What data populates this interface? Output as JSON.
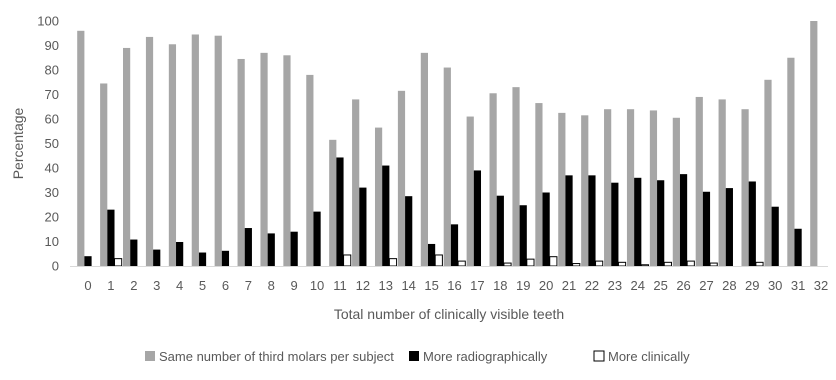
{
  "chart_data": {
    "type": "bar",
    "xlabel": "Total number of clinically visible teeth",
    "ylabel": "Percentage",
    "ylim": [
      0,
      100
    ],
    "yticks": [
      0,
      10,
      20,
      30,
      40,
      50,
      60,
      70,
      80,
      90,
      100
    ],
    "categories": [
      "0",
      "1",
      "2",
      "3",
      "4",
      "5",
      "6",
      "7",
      "8",
      "9",
      "10",
      "11",
      "12",
      "13",
      "14",
      "15",
      "16",
      "17",
      "18",
      "19",
      "20",
      "21",
      "22",
      "23",
      "24",
      "25",
      "26",
      "27",
      "28",
      "29",
      "30",
      "31",
      "32"
    ],
    "series": [
      {
        "name": "Same number of third molars per subject",
        "color": "#a6a6a6",
        "values": [
          96,
          74.5,
          89,
          93.5,
          90.5,
          94.5,
          94,
          84.5,
          87,
          86,
          78,
          51.5,
          68,
          56.5,
          71.5,
          87,
          81,
          61,
          70.5,
          73,
          66.5,
          62.5,
          61.5,
          64,
          64,
          63.5,
          60.5,
          69,
          68,
          64,
          76,
          85,
          100
        ]
      },
      {
        "name": "More radiographically",
        "color": "#000000",
        "values": [
          4,
          23,
          10.8,
          6.7,
          9.8,
          5.5,
          6.2,
          15.5,
          13.3,
          14,
          22.2,
          44.3,
          32,
          41,
          28.5,
          9,
          17,
          39,
          28.7,
          24.8,
          30,
          37,
          37,
          34,
          36,
          35,
          37.5,
          30.3,
          31.8,
          34.5,
          24.2,
          15.2,
          0
        ]
      },
      {
        "name": "More clinically",
        "color": "#ffffff",
        "values": [
          0,
          3,
          0,
          0,
          0,
          0,
          0,
          0,
          0,
          0,
          0,
          4.5,
          0,
          3,
          0,
          4.5,
          2,
          0,
          1.2,
          2.8,
          3.8,
          1,
          2,
          1.5,
          0.5,
          1.5,
          2,
          1.2,
          0,
          1.5,
          0,
          0,
          0
        ]
      }
    ],
    "grid": false,
    "legend_position": "bottom"
  }
}
